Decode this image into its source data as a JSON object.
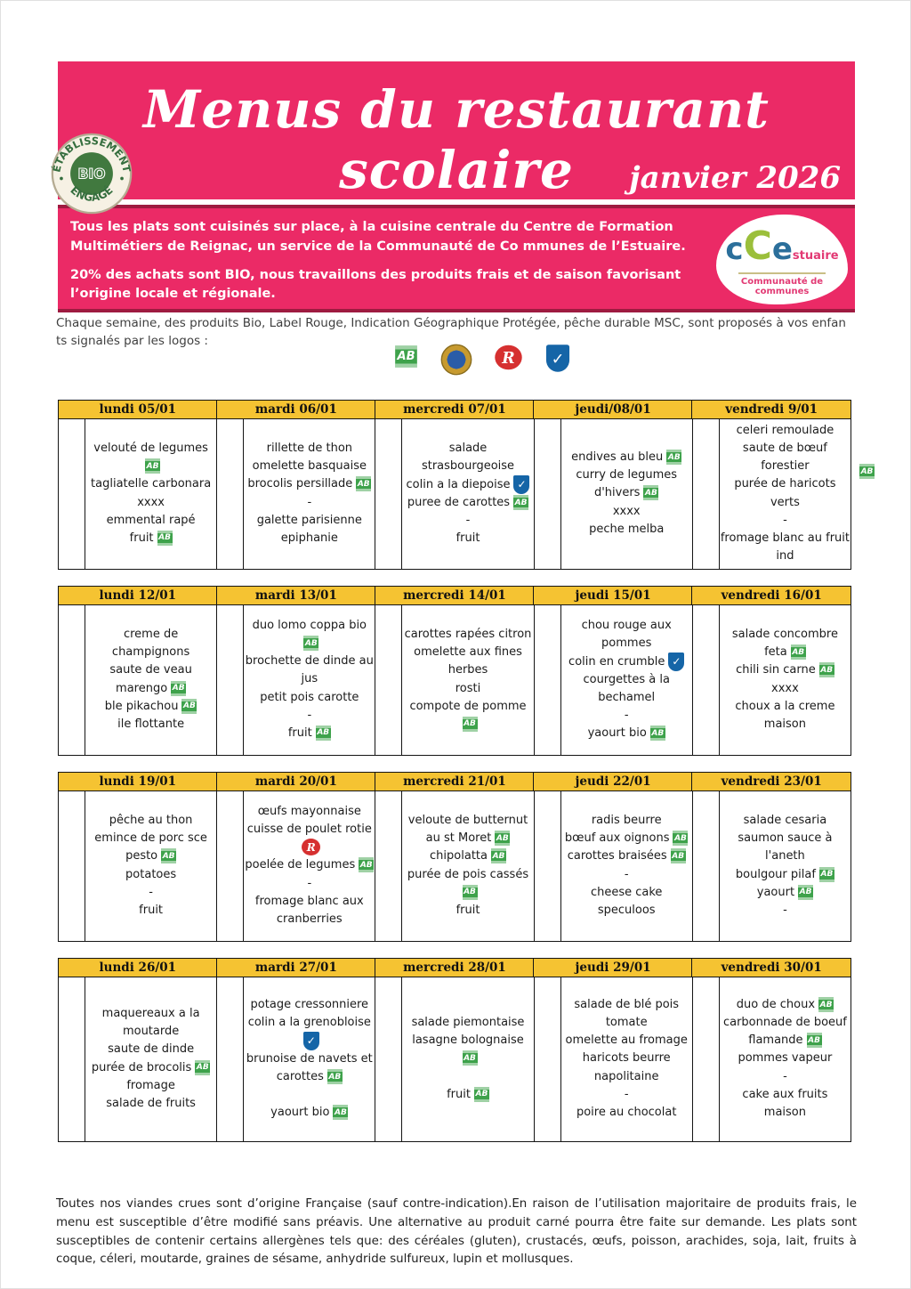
{
  "banner": {
    "title": "Menus du restaurant scolaire",
    "subtitle": "janvier 2026"
  },
  "bio_badge": {
    "top": "ÉTABLISSEMENT",
    "center": "BIO",
    "bottom": "ENGAGÉ"
  },
  "intro": {
    "p1": "Tous les plats sont cuisinés sur place, à la cuisine centrale du Centre de Formation Multimétiers de Reignac, un service de la Communauté de Co mmunes de l’Estuaire.",
    "p2": "20% des achats sont BIO, nous travaillons des produits frais et de saison favorisant l’origine locale et régionale."
  },
  "cce": {
    "c1": "c",
    "c2": "C",
    "c3": "e",
    "stuaire": "stuaire",
    "caption": "Communauté de communes"
  },
  "note": {
    "text": "Chaque semaine, des produits Bio, Label Rouge, Indication Géographique Protégée, pêche durable MSC, sont proposés à vos enfan ts signalés par les logos :"
  },
  "legend": [
    "ab",
    "igp",
    "label-rouge",
    "msc"
  ],
  "colors": {
    "pink": "#EB2A66",
    "dark_red": "#9E1B40",
    "yellow": "#F5C332",
    "ab_green": "#3EA24B",
    "msc_blue": "#1565A7",
    "label_rouge_red": "#D63030"
  },
  "weeks": [
    {
      "days": [
        {
          "header": "lundi 05/01",
          "items": [
            {
              "t": "velouté de legumes",
              "icon": "ab"
            },
            {
              "t": "tagliatelle carbonara"
            },
            {
              "t": "xxxx"
            },
            {
              "t": "emmental rapé"
            },
            {
              "t": "fruit",
              "icon": "ab"
            }
          ]
        },
        {
          "header": "mardi 06/01",
          "items": [
            {
              "t": "rillette de thon"
            },
            {
              "t": "omelette basquaise"
            },
            {
              "t": "brocolis persillade",
              "icon": "ab"
            },
            {
              "t": "-"
            },
            {
              "t": "galette parisienne epiphanie"
            }
          ]
        },
        {
          "header": "mercredi 07/01",
          "items": [
            {
              "t": "salade strasbourgeoise"
            },
            {
              "t": "colin a la diepoise",
              "icon": "msc"
            },
            {
              "t": "puree de carottes",
              "icon": "ab"
            },
            {
              "t": "-"
            },
            {
              "t": "fruit"
            }
          ]
        },
        {
          "header": "jeudi/08/01",
          "items": [
            {
              "t": "endives au bleu",
              "icon": "ab"
            },
            {
              "t": "curry de legumes d'hivers",
              "icon": "ab"
            },
            {
              "t": "xxxx"
            },
            {
              "t": "peche melba"
            }
          ]
        },
        {
          "header": "vendredi 9/01",
          "outer_icon": "ab",
          "items": [
            {
              "t": "celeri remoulade"
            },
            {
              "t": "saute de bœuf forestier"
            },
            {
              "t": "purée de haricots verts"
            },
            {
              "t": "-"
            },
            {
              "t": "fromage blanc au fruit ind"
            }
          ]
        }
      ]
    },
    {
      "days": [
        {
          "header": "lundi 12/01",
          "items": [
            {
              "t": "creme de champignons"
            },
            {
              "t": "saute de veau marengo",
              "icon": "ab"
            },
            {
              "t": "ble pikachou",
              "icon": "ab"
            },
            {
              "t": "ile flottante"
            }
          ]
        },
        {
          "header": "mardi 13/01",
          "items": [
            {
              "t": "duo lomo coppa bio",
              "icon": "ab"
            },
            {
              "t": "brochette de dinde au jus"
            },
            {
              "t": "petit pois carotte"
            },
            {
              "t": "-"
            },
            {
              "t": "fruit",
              "icon": "ab"
            }
          ]
        },
        {
          "header": "mercredi 14/01",
          "items": [
            {
              "t": "carottes rapées citron"
            },
            {
              "t": "omelette aux fines herbes"
            },
            {
              "t": "rosti"
            },
            {
              "t": "compote de pomme",
              "icon": "ab"
            }
          ]
        },
        {
          "header": "jeudi 15/01",
          "items": [
            {
              "t": "chou rouge aux pommes"
            },
            {
              "t": "colin en crumble",
              "icon": "msc"
            },
            {
              "t": "courgettes à la  bechamel"
            },
            {
              "t": "-"
            },
            {
              "t": "yaourt bio",
              "icon": "ab"
            }
          ]
        },
        {
          "header": "vendredi 16/01",
          "items": [
            {
              "t": "salade concombre feta",
              "icon": "ab"
            },
            {
              "t": "chili sin carne",
              "icon": "ab"
            },
            {
              "t": "xxxx"
            },
            {
              "t": "choux a la creme maison"
            }
          ]
        }
      ]
    },
    {
      "days": [
        {
          "header": "lundi 19/01",
          "items": [
            {
              "t": "pêche au thon"
            },
            {
              "t": "emince de porc sce pesto",
              "icon": "ab"
            },
            {
              "t": "potatoes"
            },
            {
              "t": "-"
            },
            {
              "t": "fruit"
            }
          ]
        },
        {
          "header": "mardi 20/01",
          "items": [
            {
              "t": "œufs mayonnaise"
            },
            {
              "t": "cuisse de poulet rotie",
              "icon": "label-rouge"
            },
            {
              "t": "poelée de legumes",
              "icon": "ab"
            },
            {
              "t": "-"
            },
            {
              "t": "fromage blanc aux cranberries"
            }
          ]
        },
        {
          "header": "mercredi 21/01",
          "items": [
            {
              "t": "veloute de butternut  au st Moret",
              "icon": "ab"
            },
            {
              "t": "chipolatta",
              "icon": "ab"
            },
            {
              "t": "purée de pois cassés",
              "icon": "ab"
            },
            {
              "t": "fruit"
            }
          ]
        },
        {
          "header": "jeudi 22/01",
          "items": [
            {
              "t": "radis beurre"
            },
            {
              "t": "bœuf aux oignons",
              "icon": "ab"
            },
            {
              "t": "carottes braisées",
              "icon": "ab"
            },
            {
              "t": "-"
            },
            {
              "t": "cheese cake speculoos"
            }
          ]
        },
        {
          "header": "vendredi 23/01",
          "items": [
            {
              "t": "salade  cesaria"
            },
            {
              "t": "saumon sauce à l'aneth"
            },
            {
              "t": "boulgour pilaf",
              "icon": "ab"
            },
            {
              "t": "yaourt",
              "icon": "ab"
            },
            {
              "t": "-"
            }
          ]
        }
      ]
    },
    {
      "days": [
        {
          "header": "lundi 26/01",
          "items": [
            {
              "t": "maquereaux a la moutarde"
            },
            {
              "t": "saute de dinde"
            },
            {
              "t": "purée de brocolis",
              "icon": "ab"
            },
            {
              "t": "fromage"
            },
            {
              "t": "salade de fruits"
            }
          ]
        },
        {
          "header": "mardi 27/01",
          "items": [
            {
              "t": "potage cressonniere"
            },
            {
              "t": "colin a la grenobloise",
              "icon": "msc"
            },
            {
              "t": "brunoise de navets et carottes",
              "icon": "ab"
            },
            {
              "t": ""
            },
            {
              "t": "yaourt bio",
              "icon": "ab"
            }
          ]
        },
        {
          "header": "mercredi 28/01",
          "items": [
            {
              "t": "salade piemontaise"
            },
            {
              "t": "lasagne bolognaise",
              "icon": "ab"
            },
            {
              "t": ""
            },
            {
              "t": "fruit",
              "icon": "ab"
            }
          ]
        },
        {
          "header": "jeudi 29/01",
          "items": [
            {
              "t": "salade de blé pois  tomate"
            },
            {
              "t": "omelette au fromage"
            },
            {
              "t": "haricots beurre napolitaine"
            },
            {
              "t": "-"
            },
            {
              "t": "poire au chocolat"
            }
          ]
        },
        {
          "header": "vendredi 30/01",
          "items": [
            {
              "t": "duo de choux",
              "icon": "ab"
            },
            {
              "t": "carbonnade de boeuf flamande",
              "icon": "ab"
            },
            {
              "t": "pommes vapeur"
            },
            {
              "t": "-"
            },
            {
              "t": "cake aux fruits maison"
            }
          ]
        }
      ]
    }
  ],
  "footer": {
    "text": "Toutes nos viandes crues sont d’origine Française (sauf contre-indication).En raison de l’utilisation majoritaire de produits frais, le menu est susceptible d’être modifié sans préavis. Une alternative au produit carné pourra être faite sur demande. Les plats sont susceptibles de contenir certains allergènes tels que: des céréales (gluten), crustacés, œufs, poisson, arachides, soja, lait, fruits à coque, céleri, moutarde, graines de sésame, anhydride sulfureux, lupin et mollusques."
  }
}
